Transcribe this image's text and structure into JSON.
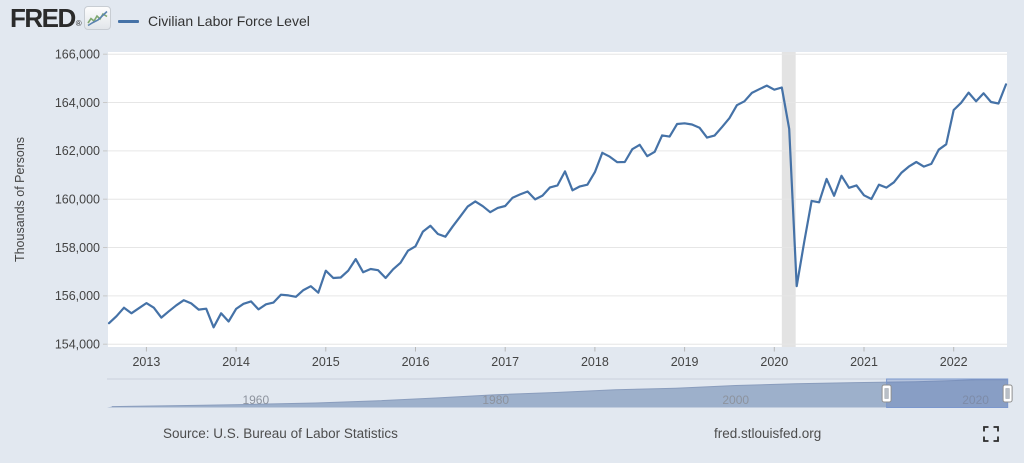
{
  "header": {
    "logo": "FRED",
    "registered": "®",
    "legend_label": "Civilian Labor Force Level"
  },
  "colors": {
    "page_bg": "#e2e8f0",
    "plot_bg": "#ffffff",
    "line": "#4572a7",
    "gridline": "#e6e6e6",
    "recession_band": "#e3e3e3",
    "slider_area": "#9db0cb",
    "slider_selection": "rgba(96,126,186,0.35)"
  },
  "chart_data": {
    "type": "line",
    "title": "Civilian Labor Force Level",
    "ylabel": "Thousands of Persons",
    "frequency": "Monthly",
    "start": "2012-08",
    "end": "2022-08",
    "ylim": [
      153900,
      166100
    ],
    "grid": true,
    "y_ticks": [
      154000,
      156000,
      158000,
      160000,
      162000,
      164000,
      166000
    ],
    "x_ticks": [
      2013,
      2014,
      2015,
      2016,
      2017,
      2018,
      2019,
      2020,
      2021,
      2022
    ],
    "recession_band": {
      "start": "2020-02",
      "end": "2020-04"
    },
    "series": [
      {
        "name": "Civilian Labor Force Level",
        "color": "#4572a7",
        "values": [
          154870,
          155160,
          155510,
          155280,
          155490,
          155700,
          155510,
          155100,
          155360,
          155610,
          155820,
          155690,
          155430,
          155470,
          154700,
          155280,
          154940,
          155460,
          155670,
          155770,
          155440,
          155650,
          155720,
          156050,
          156020,
          155960,
          156240,
          156400,
          156130,
          157040,
          156740,
          156760,
          157040,
          157520,
          156980,
          157110,
          157060,
          156740,
          157100,
          157370,
          157870,
          158050,
          158660,
          158900,
          158560,
          158450,
          158880,
          159290,
          159700,
          159910,
          159710,
          159460,
          159640,
          159720,
          160060,
          160200,
          160320,
          159990,
          160150,
          160490,
          160570,
          161150,
          160370,
          160530,
          160600,
          161120,
          161920,
          161760,
          161530,
          161540,
          162070,
          162250,
          161780,
          161960,
          162640,
          162590,
          163110,
          163140,
          163090,
          162960,
          162550,
          162630,
          162980,
          163350,
          163890,
          164050,
          164400,
          164550,
          164700,
          164530,
          164620,
          162910,
          156400,
          158230,
          159930,
          159870,
          160840,
          160140,
          160970,
          160470,
          160570,
          160160,
          160010,
          160600,
          160480,
          160700,
          161090,
          161350,
          161540,
          161350,
          161460,
          162050,
          162270,
          163690,
          163990,
          164410,
          164050,
          164380,
          164020,
          163960,
          164750
        ]
      }
    ]
  },
  "slider": {
    "labels": [
      "1960",
      "1980",
      "2000",
      "2020"
    ],
    "label_years": [
      1960,
      1980,
      2000,
      2020
    ],
    "domain_years": [
      1947.6,
      2022.7
    ],
    "selection_years": [
      2012.58,
      2022.67
    ],
    "overview_area": {
      "years": [
        1948,
        1955,
        1960,
        1965,
        1970,
        1975,
        1980,
        1985,
        1990,
        1995,
        2000,
        2005,
        2010,
        2015,
        2020,
        2022.7
      ],
      "values": [
        60.6,
        65.0,
        69.6,
        74.5,
        82.8,
        93.8,
        106.9,
        115.5,
        125.8,
        132.3,
        142.6,
        149.3,
        153.9,
        157.1,
        164.5,
        164.8
      ]
    }
  },
  "footer": {
    "source": "Source: U.S. Bureau of Labor Statistics",
    "url": "fred.stlouisfed.org"
  }
}
